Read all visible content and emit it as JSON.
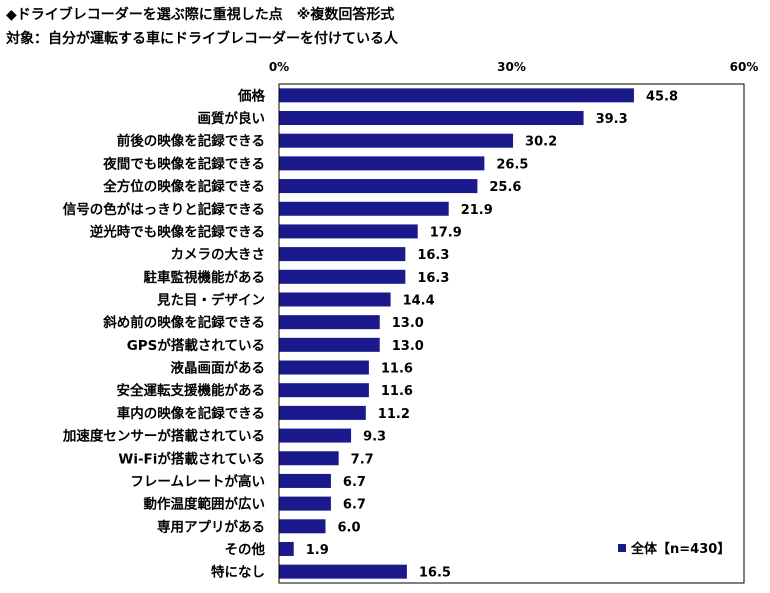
{
  "title_line1": "◆ドライブレコーダーを選ぶ際に重視した点　※複数回答形式",
  "title_line2": "対象：自分が運転する車にドライブレコーダーを付けている人",
  "chart_data": {
    "type": "bar",
    "orientation": "horizontal",
    "x_ticks": [
      "0%",
      "30%",
      "60%"
    ],
    "xlim": [
      0,
      60
    ],
    "grid": false,
    "legend_position": "bottom-right",
    "series": [
      {
        "name": "全体【n=430】",
        "color": "#1a1a8c",
        "values": [
          45.8,
          39.3,
          30.2,
          26.5,
          25.6,
          21.9,
          17.9,
          16.3,
          16.3,
          14.4,
          13.0,
          13.0,
          11.6,
          11.6,
          11.2,
          9.3,
          7.7,
          6.7,
          6.7,
          6.0,
          1.9,
          16.5
        ],
        "value_labels": [
          "45.8",
          "39.3",
          "30.2",
          "26.5",
          "25.6",
          "21.9",
          "17.9",
          "16.3",
          "16.3",
          "14.4",
          "13.0",
          "13.0",
          "11.6",
          "11.6",
          "11.2",
          "9.3",
          "7.7",
          "6.7",
          "6.7",
          "6.0",
          "1.9",
          "16.5"
        ]
      }
    ],
    "categories": [
      "価格",
      "画質が良い",
      "前後の映像を記録できる",
      "夜間でも映像を記録できる",
      "全方位の映像を記録できる",
      "信号の色がはっきりと記録できる",
      "逆光時でも映像を記録できる",
      "カメラの大きさ",
      "駐車監視機能がある",
      "見た目・デザイン",
      "斜め前の映像を記録できる",
      "GPSが搭載されている",
      "液晶画面がある",
      "安全運転支援機能がある",
      "車内の映像を記録できる",
      "加速度センサーが搭載されている",
      "Wi-Fiが搭載されている",
      "フレームレートが高い",
      "動作温度範囲が広い",
      "専用アプリがある",
      "その他",
      "特になし"
    ]
  }
}
